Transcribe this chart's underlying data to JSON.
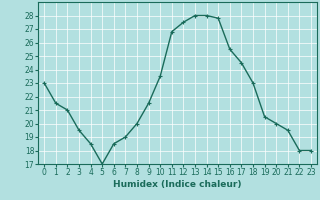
{
  "x": [
    0,
    1,
    2,
    3,
    4,
    5,
    6,
    7,
    8,
    9,
    10,
    11,
    12,
    13,
    14,
    15,
    16,
    17,
    18,
    19,
    20,
    21,
    22,
    23
  ],
  "y": [
    23,
    21.5,
    21,
    19.5,
    18.5,
    17,
    18.5,
    19,
    20,
    21.5,
    23.5,
    26.8,
    27.5,
    28,
    28,
    27.8,
    25.5,
    24.5,
    23,
    20.5,
    20,
    19.5,
    18,
    18
  ],
  "line_color": "#1a6b5a",
  "marker": "+",
  "marker_size": 3,
  "bg_color": "#b2e0e0",
  "grid_color": "#ffffff",
  "xlabel": "Humidex (Indice chaleur)",
  "ylim": [
    17,
    29
  ],
  "yticks": [
    17,
    18,
    19,
    20,
    21,
    22,
    23,
    24,
    25,
    26,
    27,
    28
  ],
  "xticks": [
    0,
    1,
    2,
    3,
    4,
    5,
    6,
    7,
    8,
    9,
    10,
    11,
    12,
    13,
    14,
    15,
    16,
    17,
    18,
    19,
    20,
    21,
    22,
    23
  ],
  "tick_fontsize": 5.5,
  "xlabel_fontsize": 6.5,
  "line_width": 1.0,
  "xlim": [
    -0.5,
    23.5
  ]
}
